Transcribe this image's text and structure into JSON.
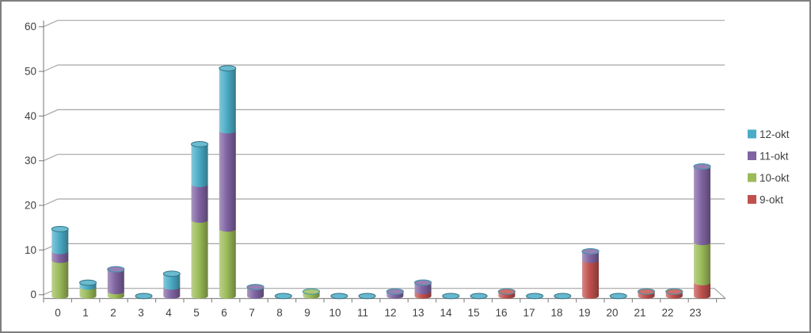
{
  "chart_data": {
    "type": "bar",
    "stacked": true,
    "style": "3d-cylinder",
    "title": "",
    "xlabel": "",
    "ylabel": "",
    "categories": [
      "0",
      "1",
      "2",
      "3",
      "4",
      "5",
      "6",
      "7",
      "8",
      "9",
      "10",
      "11",
      "12",
      "13",
      "14",
      "15",
      "16",
      "17",
      "18",
      "19",
      "20",
      "21",
      "22",
      "23"
    ],
    "series": [
      {
        "name": "9-okt",
        "color": "#C0504D",
        "values": [
          0,
          0,
          0,
          0,
          0,
          0,
          0,
          0,
          0,
          0,
          0,
          0,
          0,
          1,
          0,
          0,
          1,
          0,
          0,
          8,
          0,
          1,
          1,
          3
        ]
      },
      {
        "name": "10-okt",
        "color": "#9BBB59",
        "values": [
          8,
          2,
          1,
          0,
          0,
          17,
          15,
          0,
          0,
          1,
          0,
          0,
          0,
          0,
          0,
          0,
          0,
          0,
          0,
          0,
          0,
          0,
          0,
          9
        ]
      },
      {
        "name": "11-okt",
        "color": "#8064A2",
        "values": [
          2,
          0,
          5,
          0,
          2,
          8,
          22,
          2,
          0,
          0,
          0,
          0,
          1,
          2,
          0,
          0,
          0,
          0,
          0,
          2,
          0,
          0,
          0,
          17
        ]
      },
      {
        "name": "12-okt",
        "color": "#4BACC6",
        "values": [
          5,
          1,
          0,
          0,
          3,
          9,
          14,
          0,
          0,
          0,
          0,
          0,
          0,
          0,
          0,
          0,
          0,
          0,
          0,
          0,
          0,
          0,
          0,
          0
        ]
      }
    ],
    "legend": {
      "position": "right",
      "entries": [
        "12-okt",
        "11-okt",
        "10-okt",
        "9-okt"
      ]
    },
    "ylim": [
      0,
      60
    ],
    "yticks": [
      0,
      10,
      20,
      30,
      40,
      50,
      60
    ],
    "grid": true,
    "colors": {
      "grid": "#A6A6A6",
      "axis": "#8C8C8C",
      "text": "#404040",
      "border": "#7F7F7F",
      "background": "#FFFFFF"
    }
  }
}
